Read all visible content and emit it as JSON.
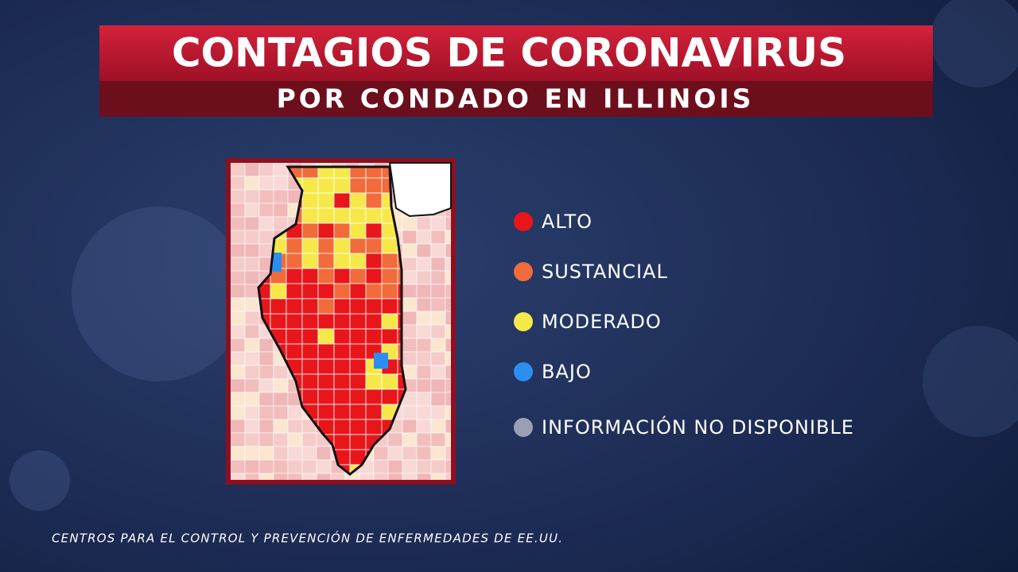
{
  "header": {
    "title": "CONTAGIOS DE CORONAVIRUS",
    "subtitle": "POR CONDADO EN ILLINOIS"
  },
  "legend": [
    {
      "label": "ALTO",
      "color": "#e8161b"
    },
    {
      "label": "SUSTANCIAL",
      "color": "#f26b3a"
    },
    {
      "label": "MODERADO",
      "color": "#f7e84a"
    },
    {
      "label": "BAJO",
      "color": "#2c8ef0"
    },
    {
      "label": "INFORMACIÓN NO DISPONIBLE",
      "color": "#9aa0b4"
    }
  ],
  "source": "CENTROS PARA EL CONTROL Y PREVENCIÓN DE ENFERMEDADES DE EE.UU."
}
